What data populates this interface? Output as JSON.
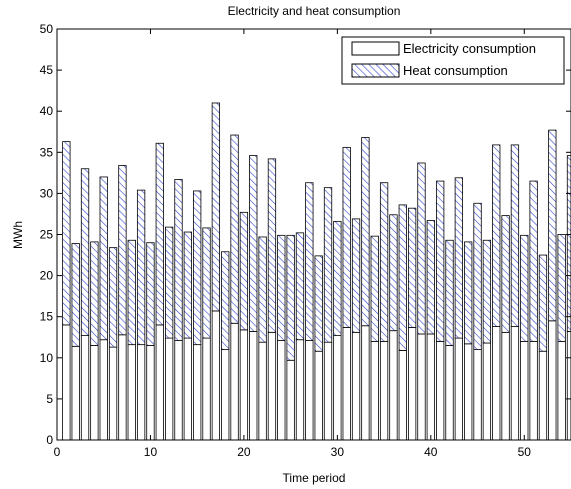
{
  "chart_data": {
    "type": "bar",
    "stacked": true,
    "title": "Electricity and heat consumption",
    "xlabel": "Time period",
    "ylabel": "MWh",
    "xlim": [
      0,
      55
    ],
    "ylim": [
      0,
      50
    ],
    "xticks": [
      "0",
      "10",
      "20",
      "30",
      "40",
      "50"
    ],
    "yticks": [
      "0",
      "5",
      "10",
      "15",
      "20",
      "25",
      "30",
      "35",
      "40",
      "45",
      "50"
    ],
    "grid": false,
    "legend_position": "top-right",
    "x": [
      1,
      2,
      3,
      4,
      5,
      6,
      7,
      8,
      9,
      10,
      11,
      12,
      13,
      14,
      15,
      16,
      17,
      18,
      19,
      20,
      21,
      22,
      23,
      24,
      25,
      26,
      27,
      28,
      29,
      30,
      31,
      32,
      33,
      34,
      35,
      36,
      37,
      38,
      39,
      40,
      41,
      42,
      43,
      44,
      45,
      46,
      47,
      48,
      49,
      50,
      51,
      52,
      53,
      54,
      55
    ],
    "series": [
      {
        "name": "Electricity consumption",
        "color": "#ffffff",
        "values": [
          14.0,
          11.4,
          12.7,
          11.5,
          12.2,
          11.3,
          12.8,
          11.6,
          11.6,
          11.5,
          14.0,
          12.4,
          12.1,
          12.4,
          11.6,
          12.4,
          15.7,
          11.0,
          14.2,
          13.4,
          13.2,
          11.9,
          13.1,
          12.1,
          9.7,
          12.2,
          12.1,
          10.8,
          11.9,
          12.7,
          13.7,
          13.1,
          13.9,
          12.0,
          12.0,
          13.3,
          10.9,
          13.7,
          12.9,
          12.9,
          12.0,
          11.5,
          12.4,
          11.7,
          11.0,
          11.8,
          13.8,
          13.1,
          13.8,
          12.0,
          12.0,
          10.8,
          14.5,
          12.0,
          13.2
        ]
      },
      {
        "name": "Heat consumption",
        "color": "#3344cc",
        "values": [
          22.3,
          12.5,
          20.3,
          12.6,
          19.8,
          12.1,
          20.6,
          12.7,
          18.8,
          12.5,
          22.1,
          13.5,
          19.6,
          12.9,
          18.7,
          13.4,
          25.3,
          11.9,
          22.9,
          14.3,
          21.4,
          12.8,
          21.1,
          12.8,
          15.2,
          13.0,
          19.2,
          11.6,
          18.8,
          13.9,
          21.9,
          13.8,
          22.9,
          12.8,
          19.3,
          14.1,
          17.7,
          14.5,
          20.8,
          13.8,
          19.5,
          12.8,
          19.5,
          12.4,
          17.8,
          12.5,
          22.1,
          14.2,
          22.1,
          12.9,
          19.5,
          11.7,
          23.2,
          13.0,
          21.4
        ]
      }
    ]
  }
}
